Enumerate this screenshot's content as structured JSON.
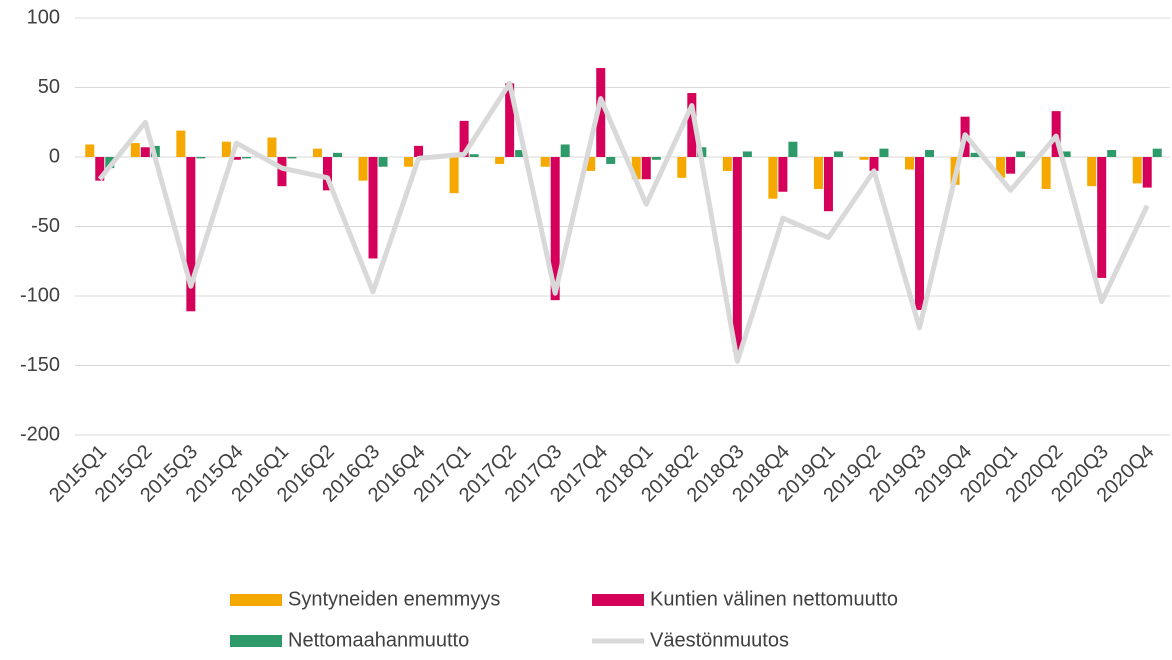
{
  "chart_data": {
    "type": "bar-line",
    "categories": [
      "2015Q1",
      "2015Q2",
      "2015Q3",
      "2015Q4",
      "2016Q1",
      "2016Q2",
      "2016Q3",
      "2016Q4",
      "2017Q1",
      "2017Q2",
      "2017Q3",
      "2017Q4",
      "2018Q1",
      "2018Q2",
      "2018Q3",
      "2018Q4",
      "2019Q1",
      "2019Q2",
      "2019Q3",
      "2019Q4",
      "2020Q1",
      "2020Q2",
      "2020Q3",
      "2020Q4"
    ],
    "series": [
      {
        "name": "Syntyneiden enemmyys",
        "type": "bar",
        "color": "#f5a800",
        "values": [
          9,
          10,
          19,
          11,
          14,
          6,
          -17,
          -7,
          -26,
          -5,
          -7,
          -10,
          -16,
          -15,
          -10,
          -30,
          -23,
          -2,
          -9,
          -20,
          -15,
          -23,
          -21,
          -19
        ]
      },
      {
        "name": "Kuntien välinen nettomuutto",
        "type": "bar",
        "color": "#d4005a",
        "values": [
          -17,
          7,
          -111,
          -2,
          -21,
          -24,
          -73,
          8,
          26,
          53,
          -103,
          64,
          -16,
          46,
          -140,
          -25,
          -39,
          -10,
          -110,
          29,
          -12,
          33,
          -87,
          -22
        ]
      },
      {
        "name": "Nettomaahanmuutto",
        "type": "bar",
        "color": "#2e9a6a",
        "values": [
          -8,
          8,
          -1,
          -1,
          -1,
          3,
          -7,
          0,
          2,
          5,
          9,
          -5,
          -2,
          7,
          4,
          11,
          4,
          6,
          5,
          3,
          4,
          4,
          5,
          6
        ]
      },
      {
        "name": "Väestönmuutos",
        "type": "line",
        "color": "#d9d9d9",
        "values": [
          -16,
          25,
          -93,
          10,
          -8,
          -15,
          -97,
          -1,
          2,
          53,
          -98,
          42,
          -34,
          37,
          -147,
          -44,
          -58,
          -10,
          -123,
          16,
          -24,
          15,
          -104,
          -35
        ]
      }
    ],
    "ylim": [
      -200,
      100
    ],
    "yticks": [
      -200,
      -150,
      -100,
      -50,
      0,
      50,
      100
    ],
    "grid": true,
    "legend": "bottom"
  }
}
